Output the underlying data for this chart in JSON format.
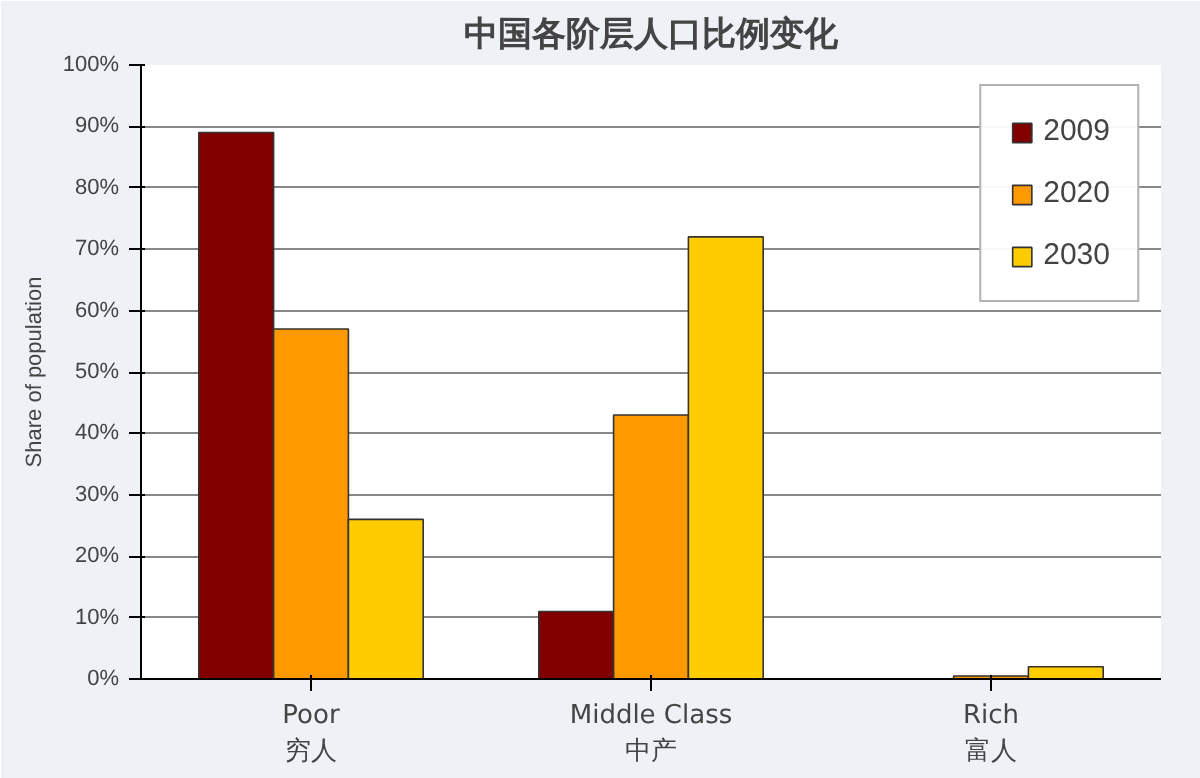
{
  "chart_data": {
    "type": "bar",
    "title": "中国各阶层人口比例变化",
    "ylabel": "Share of population",
    "categories": [
      "Poor\n穷人",
      "Middle Class\n中产",
      "Rich\n富人"
    ],
    "series": [
      {
        "name": "2009",
        "color": "#800000",
        "values": [
          89,
          11,
          null
        ]
      },
      {
        "name": "2020",
        "color": "#ff9900",
        "values": [
          57,
          43,
          0.5
        ]
      },
      {
        "name": "2030",
        "color": "#ffcc00",
        "values": [
          26,
          72,
          2
        ]
      }
    ],
    "ylim": [
      0,
      100
    ],
    "yticks": [
      {
        "value": 0,
        "label": "0%"
      },
      {
        "value": 10,
        "label": "10%"
      },
      {
        "value": 20,
        "label": "20%"
      },
      {
        "value": 30,
        "label": "30%"
      },
      {
        "value": 40,
        "label": "40%"
      },
      {
        "value": 50,
        "label": "50%"
      },
      {
        "value": 60,
        "label": "60%"
      },
      {
        "value": 70,
        "label": "70%"
      },
      {
        "value": 80,
        "label": "80%"
      },
      {
        "value": 90,
        "label": "90%"
      },
      {
        "value": 100,
        "label": "100%"
      }
    ],
    "grid": "y",
    "legend": "top right"
  }
}
